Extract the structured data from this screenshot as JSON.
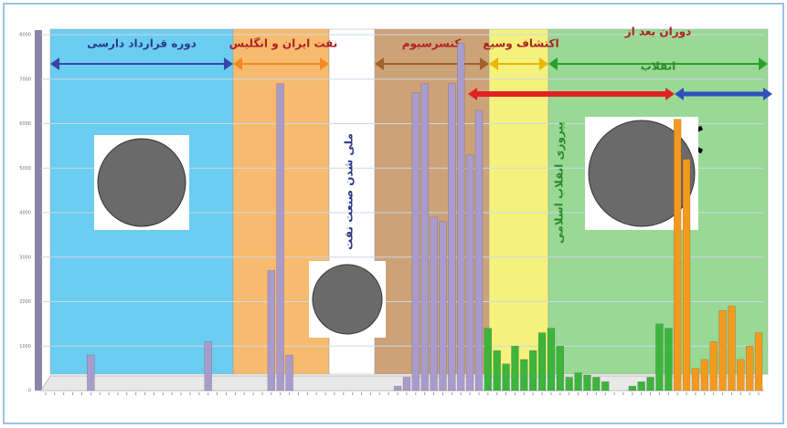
{
  "chart_data": {
    "type": "bar",
    "eras": [
      {
        "label": "دوره قرارداد دارسی",
        "color": "#5bc8f0"
      },
      {
        "label": "نفت ایران و انگلیس",
        "color": "#f6b460"
      },
      {
        "label": "ملی شدن صنعت نفت",
        "color": "#ffffff"
      },
      {
        "label": "کنسرسیوم",
        "color": "#c8986a"
      },
      {
        "label": "اکتشاف وسیع",
        "color": "#f4f070"
      },
      {
        "label": [
          "دوران بعد از",
          "انقلاب"
        ],
        "color": "#8fd48a"
      }
    ],
    "annotation": "پیروزی انقلاب اسلامی",
    "categories": [
      null,
      null,
      null,
      null,
      null,
      null,
      null,
      null,
      null,
      null,
      null,
      null,
      null,
      null,
      null,
      null,
      null,
      null,
      null,
      null,
      null,
      null,
      null,
      null,
      null,
      null,
      null,
      null,
      null,
      null,
      null,
      null,
      null,
      null,
      null,
      null,
      null,
      null,
      null,
      null,
      null,
      null,
      null,
      null,
      null,
      null,
      null,
      null,
      null,
      null,
      null,
      null,
      null,
      null,
      null,
      null,
      null,
      null,
      null,
      null,
      null,
      null,
      null,
      null,
      null,
      null,
      null,
      null,
      null,
      null,
      null,
      null,
      null,
      null,
      null,
      null,
      null,
      null,
      null,
      null
    ],
    "series": [
      {
        "color": "#a99ccc",
        "values": [
          null,
          null,
          null,
          null,
          null,
          800,
          null,
          null,
          null,
          null,
          null,
          null,
          null,
          null,
          null,
          null,
          null,
          null,
          1100,
          null,
          null,
          null,
          null,
          null,
          null,
          2700,
          6900,
          800,
          null,
          null,
          null,
          null,
          null,
          null,
          null,
          null,
          null,
          null,
          null,
          100,
          300,
          6700,
          6900,
          3900,
          3800,
          6900,
          7800,
          5300,
          6300,
          null,
          null,
          null,
          null,
          null,
          null,
          null,
          null,
          null,
          null,
          null,
          null,
          null,
          null,
          null,
          null,
          null,
          null,
          null,
          null,
          null,
          null,
          null,
          null,
          null,
          null,
          null,
          null,
          null,
          null,
          null
        ]
      },
      {
        "color": "#3db53d",
        "values": [
          null,
          null,
          null,
          null,
          null,
          null,
          null,
          null,
          null,
          null,
          null,
          null,
          null,
          null,
          null,
          null,
          null,
          null,
          null,
          null,
          null,
          null,
          null,
          null,
          null,
          null,
          null,
          null,
          null,
          null,
          null,
          null,
          null,
          null,
          null,
          null,
          null,
          null,
          null,
          null,
          null,
          null,
          null,
          null,
          null,
          null,
          null,
          null,
          null,
          1400,
          900,
          600,
          1000,
          700,
          900,
          1300,
          1400,
          1000,
          300,
          400,
          350,
          300,
          200,
          null,
          null,
          100,
          200,
          300,
          1500,
          1400,
          null,
          null,
          null,
          null,
          null,
          null,
          null,
          null,
          null,
          null
        ]
      },
      {
        "color": "#f39a1e",
        "values": [
          null,
          null,
          null,
          null,
          null,
          null,
          null,
          null,
          null,
          null,
          null,
          null,
          null,
          null,
          null,
          null,
          null,
          null,
          null,
          null,
          null,
          null,
          null,
          null,
          null,
          null,
          null,
          null,
          null,
          null,
          null,
          null,
          null,
          null,
          null,
          null,
          null,
          null,
          null,
          null,
          null,
          null,
          null,
          null,
          null,
          null,
          null,
          null,
          null,
          null,
          null,
          null,
          null,
          null,
          null,
          null,
          null,
          null,
          null,
          null,
          null,
          null,
          null,
          null,
          null,
          null,
          null,
          null,
          null,
          null,
          6100,
          5200,
          500,
          700,
          1100,
          1800,
          1900,
          700,
          1000,
          1300
        ]
      }
    ],
    "ylim": [
      0,
      8000
    ],
    "yticks": [
      0,
      1000,
      2000,
      3000,
      4000,
      5000,
      6000,
      7000,
      8000
    ],
    "grid": true
  }
}
